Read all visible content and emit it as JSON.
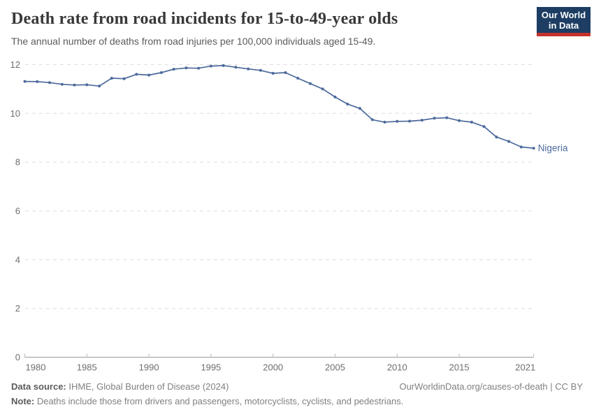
{
  "header": {
    "title": "Death rate from road incidents for 15-to-49-year olds",
    "subtitle": "The annual number of deaths from road injuries per 100,000 individuals aged 15-49.",
    "logo": {
      "line1": "Our World",
      "line2": "in Data",
      "bg_color": "#1d3d63",
      "accent_color": "#c5332b"
    }
  },
  "chart_data": {
    "type": "line",
    "title": "Death rate from road incidents for 15-to-49-year olds",
    "xlabel": "",
    "ylabel": "",
    "xlim": [
      1980,
      2021
    ],
    "ylim": [
      0,
      12
    ],
    "grid": "horizontal-dashed",
    "legend_position": "end-of-line",
    "x_ticks": [
      1980,
      1985,
      1990,
      1995,
      2000,
      2005,
      2010,
      2015,
      2021
    ],
    "y_ticks": [
      0,
      2,
      4,
      6,
      8,
      10,
      12
    ],
    "x": [
      1980,
      1981,
      1982,
      1983,
      1984,
      1985,
      1986,
      1987,
      1988,
      1989,
      1990,
      1991,
      1992,
      1993,
      1994,
      1995,
      1996,
      1997,
      1998,
      1999,
      2000,
      2001,
      2002,
      2003,
      2004,
      2005,
      2006,
      2007,
      2008,
      2009,
      2010,
      2011,
      2012,
      2013,
      2014,
      2015,
      2016,
      2017,
      2018,
      2019,
      2020,
      2021
    ],
    "series": [
      {
        "name": "Nigeria",
        "color": "#4c6a9c",
        "values": [
          11.31,
          11.3,
          11.26,
          11.19,
          11.16,
          11.17,
          11.12,
          11.44,
          11.42,
          11.6,
          11.57,
          11.67,
          11.81,
          11.86,
          11.85,
          11.94,
          11.96,
          11.89,
          11.82,
          11.76,
          11.64,
          11.67,
          11.44,
          11.22,
          11.0,
          10.67,
          10.38,
          10.2,
          9.74,
          9.64,
          9.67,
          9.68,
          9.72,
          9.8,
          9.82,
          9.7,
          9.64,
          9.46,
          9.03,
          8.85,
          8.62,
          8.57
        ]
      }
    ],
    "style": {
      "gridline_color": "#dedede",
      "axis_color": "#999999",
      "tick_mark_color": "#bbbbbb",
      "label_color": "#6e6e6e"
    }
  },
  "footer": {
    "source_label": "Data source:",
    "source_text": " IHME, Global Burden of Disease (2024)",
    "link_text": "OurWorldinData.org/causes-of-death | CC BY",
    "note_label": "Note:",
    "note_text": " Deaths include those from drivers and passengers, motorcyclists, cyclists, and pedestrians."
  }
}
